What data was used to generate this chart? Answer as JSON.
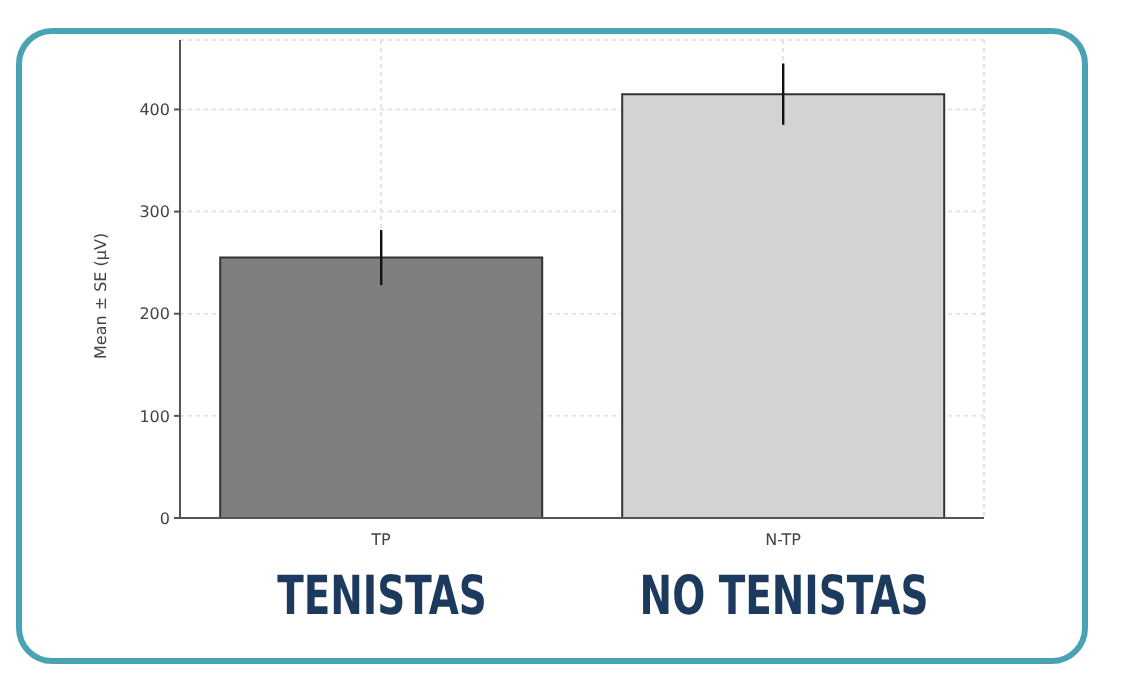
{
  "chart_data": {
    "type": "bar",
    "ylabel": "Mean ± SE (μV)",
    "categories": [
      "TP",
      "N-TP"
    ],
    "values": [
      255,
      415
    ],
    "errors": [
      27,
      30
    ],
    "colors": [
      "#7f7f7f",
      "#d3d3d3"
    ],
    "ylim": [
      0,
      468
    ],
    "yticks": [
      0,
      100,
      200,
      300,
      400
    ],
    "grid": true,
    "annotations": [
      "TENISTAS",
      "NO TENISTAS"
    ]
  }
}
